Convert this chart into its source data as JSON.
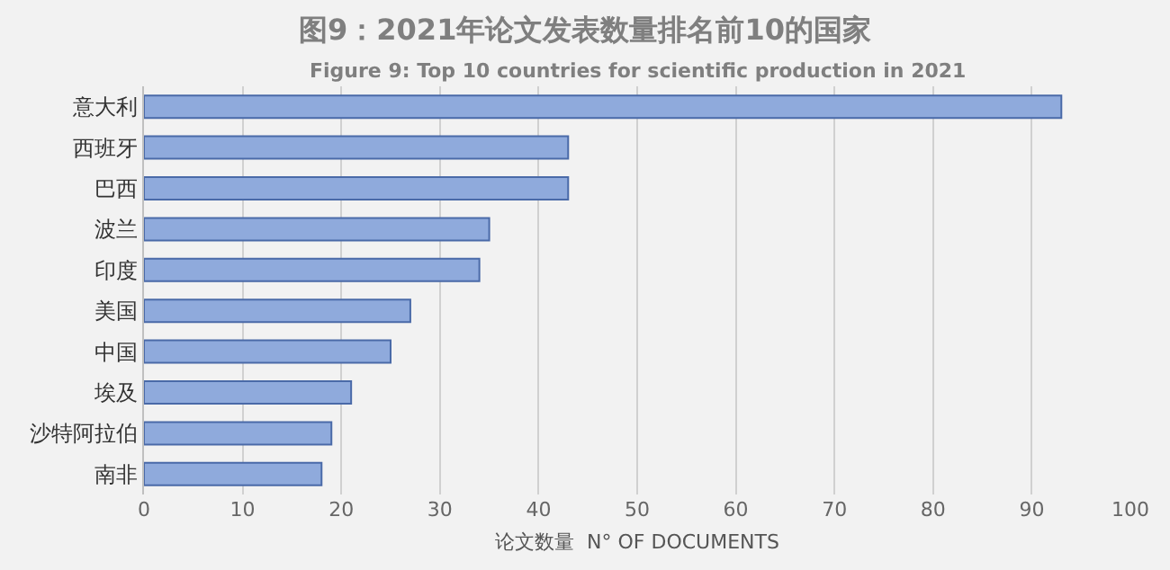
{
  "chart_data": {
    "type": "bar",
    "orientation": "horizontal",
    "title": "图9：2021年论文发表数量排名前10的国家",
    "subtitle": "Figure 9: Top 10 countries for scientific production in 2021",
    "xlabel": "论文数量  N° OF DOCUMENTS",
    "categories": [
      "意大利",
      "西班牙",
      "巴西",
      "波兰",
      "印度",
      "美国",
      "中国",
      "埃及",
      "沙特阿拉伯",
      "南非"
    ],
    "values": [
      93,
      43,
      43,
      35,
      34,
      27,
      25,
      21,
      19,
      18
    ],
    "color": "#8faadc",
    "xlim": [
      0,
      100
    ],
    "xticks": [
      0,
      10,
      20,
      30,
      40,
      50,
      60,
      70,
      80,
      90,
      100
    ],
    "grid": "x"
  }
}
